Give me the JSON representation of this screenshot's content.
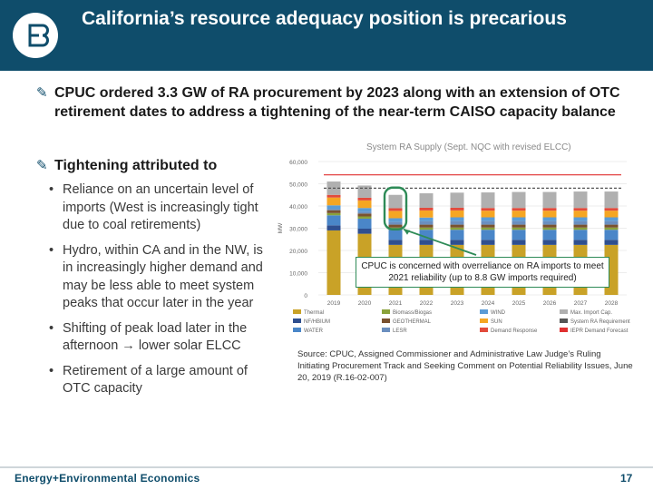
{
  "slide": {
    "title": "California’s resource adequacy position is precarious",
    "page_number": "17",
    "footer_company": "Energy+Environmental Economics",
    "colors": {
      "header_bg": "#0f4d6b",
      "callout_border": "#2e8b57",
      "red_line": "#e03030"
    }
  },
  "bullets": {
    "main1": "CPUC ordered 3.3 GW of RA procurement by 2023 along with an extension of OTC retirement dates to address a tightening of the near-term CAISO capacity balance",
    "main2": "Tightening attributed to",
    "arrow_icon": "✎",
    "subs": [
      "Reliance on an uncertain level of imports (West is increasingly tight due to coal retirements)",
      "Hydro, within CA and in the NW, is in increasingly higher demand and may be less able to meet system peaks that occur later in the year",
      "Shifting of peak load later in the afternoon → lower solar ELCC",
      "Retirement of a large amount of OTC capacity"
    ]
  },
  "callout": "CPUC is concerned with overreliance on RA imports to meet 2021 reliability (up to 8.8 GW imports required)",
  "source": "Source: CPUC, Assigned Commissioner and Administrative Law Judge’s Ruling Initiating Procurement Track and Seeking Comment on Potential Reliability Issues, June 20, 2019 (R.16-02-007)",
  "chart_data": {
    "type": "bar",
    "stacked": true,
    "title": "System RA Supply (Sept. NQC with revised ELCC)",
    "ylabel": "MW",
    "ylim": [
      0,
      60000
    ],
    "yticks": [
      0,
      10000,
      20000,
      30000,
      40000,
      50000,
      60000
    ],
    "ytick_labels": [
      "0",
      "10,000",
      "20,000",
      "30,000",
      "40,000",
      "50,000",
      "60,000"
    ],
    "categories": [
      "2019",
      "2020",
      "2021",
      "2022",
      "2023",
      "2024",
      "2025",
      "2026",
      "2027",
      "2028"
    ],
    "series": [
      {
        "name": "Thermal",
        "color": "#c9a227",
        "values": [
          29000,
          27500,
          22500,
          22500,
          22500,
          22500,
          22500,
          22500,
          22500,
          22500
        ]
      },
      {
        "name": "NF/HBIUM",
        "color": "#2f4f8f",
        "values": [
          2300,
          2300,
          2300,
          2300,
          2300,
          2300,
          2300,
          2300,
          2300,
          2300
        ]
      },
      {
        "name": "WATER",
        "color": "#4a86c8",
        "values": [
          4500,
          4500,
          4500,
          4500,
          4500,
          4500,
          4500,
          4500,
          4500,
          4500
        ]
      },
      {
        "name": "Biomass/Biogas",
        "color": "#8aa23b",
        "values": [
          1000,
          1000,
          1000,
          1000,
          1000,
          1000,
          1000,
          1000,
          1000,
          1000
        ]
      },
      {
        "name": "GEOTHERMAL",
        "color": "#7a5230",
        "values": [
          1300,
          1300,
          1300,
          1300,
          1300,
          1300,
          1300,
          1300,
          1300,
          1300
        ]
      },
      {
        "name": "LESR",
        "color": "#6b8fbf",
        "values": [
          500,
          800,
          1200,
          1500,
          1600,
          1600,
          1600,
          1600,
          1600,
          1600
        ]
      },
      {
        "name": "WIND",
        "color": "#5b9bd5",
        "values": [
          1700,
          1700,
          1700,
          1700,
          1700,
          1700,
          1700,
          1700,
          1700,
          1700
        ]
      },
      {
        "name": "SUN",
        "color": "#f5a623",
        "values": [
          3500,
          3400,
          3300,
          3200,
          3100,
          3000,
          3000,
          3000,
          3000,
          3000
        ]
      },
      {
        "name": "Demand Response",
        "color": "#e24b3c",
        "values": [
          1200,
          1200,
          1200,
          1200,
          1200,
          1200,
          1200,
          1200,
          1200,
          1200
        ]
      },
      {
        "name": "Max. Import Cap.",
        "color": "#b0b0b0",
        "values": [
          6000,
          5500,
          6000,
          6500,
          6800,
          7000,
          7200,
          7200,
          7400,
          7400
        ]
      }
    ],
    "lines": [
      {
        "name": "System RA Requirement",
        "color": "#555555",
        "style": "dashed",
        "values": [
          48000,
          48000,
          48000,
          48000,
          48000,
          48000,
          48000,
          48000,
          48000,
          48000
        ]
      },
      {
        "name": "IEPR Demand Forecast",
        "color": "#e03030",
        "style": "solid",
        "values": [
          54000,
          54000,
          54000,
          54000,
          54000,
          54000,
          54000,
          54000,
          54000,
          54000
        ]
      }
    ],
    "legend": [
      "Thermal",
      "NF/HBIUM",
      "WATER",
      "Biomass/Biogas",
      "GEOTHERMAL",
      "LESR",
      "WIND",
      "SUN",
      "Demand Response",
      "Max. Import Cap.",
      "System RA Requirement",
      "IEPR Demand Forecast"
    ],
    "highlight_category": "2021",
    "legend_position": "bottom"
  }
}
